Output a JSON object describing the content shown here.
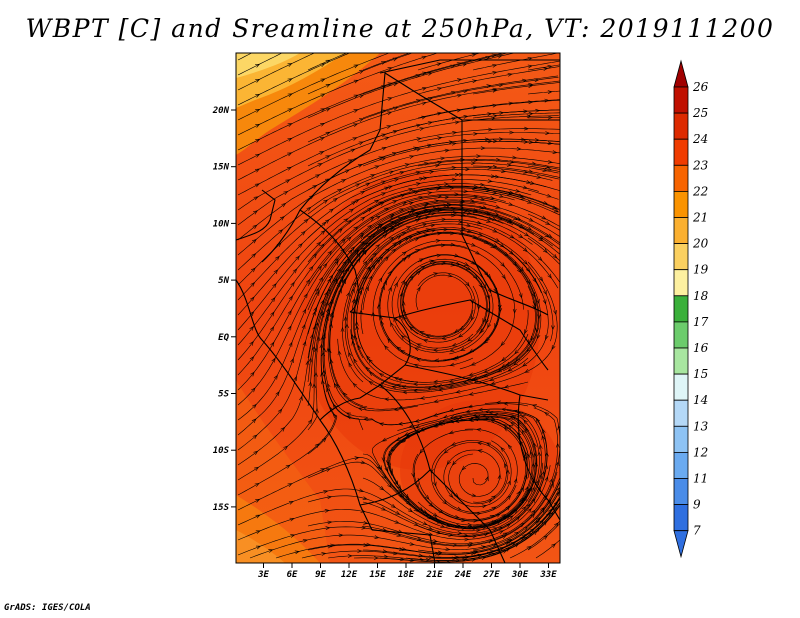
{
  "title": "WBPT [C] and Sreamline at 250hPa, VT: 2019111200",
  "footer": "GrADS: IGES/COLA",
  "map": {
    "lon_ticks": [
      "3E",
      "6E",
      "9E",
      "12E",
      "15E",
      "18E",
      "21E",
      "24E",
      "27E",
      "30E",
      "33E"
    ],
    "lat_ticks": [
      "20N",
      "15N",
      "10N",
      "5N",
      "EQ",
      "5S",
      "10S",
      "15S"
    ]
  },
  "colorbar": {
    "levels": [
      "26",
      "25",
      "24",
      "23",
      "22",
      "21",
      "20",
      "19",
      "18",
      "17",
      "16",
      "15",
      "14",
      "13",
      "12",
      "11",
      "9",
      "7"
    ],
    "colors": [
      "#a00000",
      "#c01000",
      "#dd2a00",
      "#f03c00",
      "#f76400",
      "#fa9300",
      "#fbb030",
      "#fbd060",
      "#fdf0a0",
      "#3ab03a",
      "#6ccc6c",
      "#a8e6a0",
      "#dff5f7",
      "#b4d8f7",
      "#8ec3f4",
      "#6aaaf0",
      "#4a8ce8",
      "#2f6fe0"
    ]
  }
}
